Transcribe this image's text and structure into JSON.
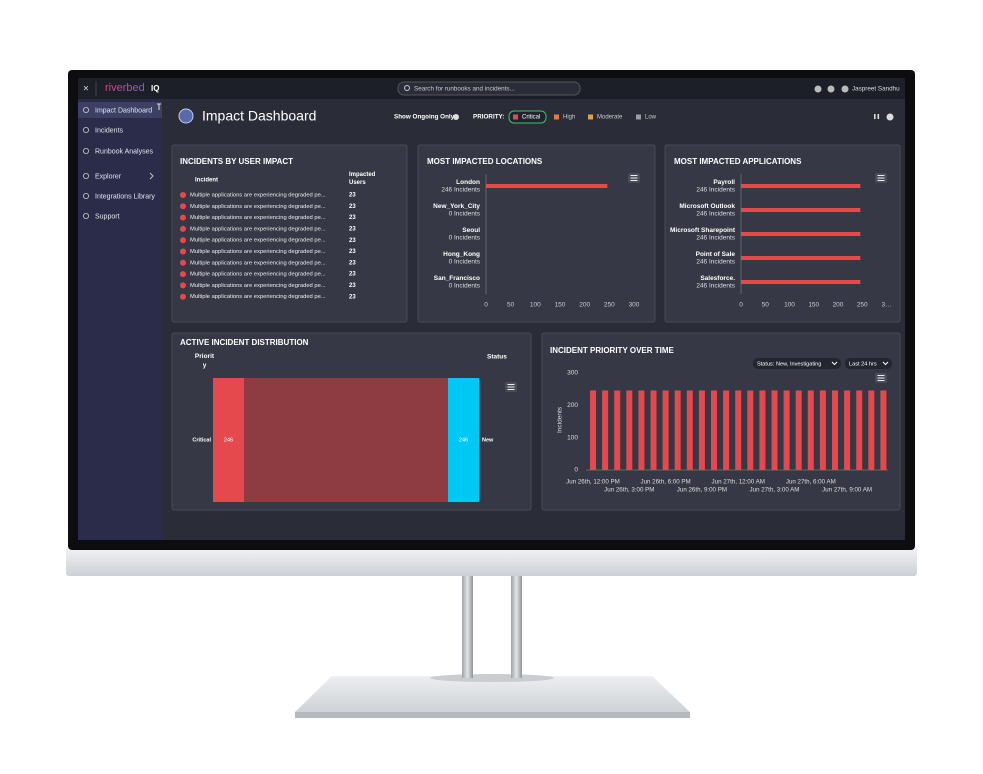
{
  "app": {
    "close": "×",
    "logo": "riverbed",
    "logo_suffix": "IQ",
    "search_placeholder": "Search for runbooks and incidents...",
    "user": "Jaspreet Sandhu"
  },
  "sidebar": {
    "items": [
      "Impact Dashboard",
      "Incidents",
      "Runbook Analyses",
      "Explorer",
      "Integrations Library",
      "Support"
    ]
  },
  "header": {
    "title": "Impact Dashboard",
    "toggle_label": "Show Ongoing Only",
    "priority_label": "PRIORITY:",
    "priorities": [
      {
        "name": "Critical",
        "color": "#e5484d"
      },
      {
        "name": "High",
        "color": "#e07b39"
      },
      {
        "name": "Moderate",
        "color": "#d9a441"
      },
      {
        "name": "Low",
        "color": "#9a9ca3"
      }
    ]
  },
  "incidents_table": {
    "title": "INCIDENTS BY USER IMPACT",
    "columns": [
      "Incident",
      "Impacted Users"
    ],
    "rows": [
      [
        "Multiple applications are experiencing degraded pe...",
        23
      ],
      [
        "Multiple applications are experiencing degraded pe...",
        23
      ],
      [
        "Multiple applications are experiencing degraded pe...",
        23
      ],
      [
        "Multiple applications are experiencing degraded pe...",
        23
      ],
      [
        "Multiple applications are experiencing degraded pe...",
        23
      ],
      [
        "Multiple applications are experiencing degraded pe...",
        23
      ],
      [
        "Multiple applications are experiencing degraded pe...",
        23
      ],
      [
        "Multiple applications are experiencing degraded pe...",
        23
      ],
      [
        "Multiple applications are experiencing degraded pe...",
        23
      ],
      [
        "Multiple applications are experiencing degraded pe...",
        23
      ]
    ]
  },
  "chart_data": [
    {
      "type": "hbar",
      "title": "MOST IMPACTED LOCATIONS",
      "categories": [
        "London",
        "New_York_City",
        "Seoul",
        "Hong_Kong",
        "San_Francisco"
      ],
      "values": [
        246,
        0,
        0,
        0,
        0
      ],
      "value_labels": [
        "246 Incidents",
        "0 Incidents",
        "0 Incidents",
        "0 Incidents",
        "0 Incidents"
      ],
      "color": "#e5484d",
      "xlim": [
        0,
        300
      ],
      "xticks": [
        0,
        50,
        100,
        150,
        200,
        250,
        300
      ]
    },
    {
      "type": "hbar",
      "title": "MOST IMPACTED APPLICATIONS",
      "categories": [
        "Payroll",
        "Microsoft Outlook",
        "Microsoft Sharepoint",
        "Point of Sale",
        "Salesforce."
      ],
      "values": [
        246,
        246,
        246,
        246,
        246
      ],
      "value_labels": [
        "246 Incidents",
        "246 Incidents",
        "246 Incidents",
        "246 Incidents",
        "246 Incidents"
      ],
      "color": "#e5484d",
      "xlim": [
        0,
        300
      ],
      "xticks": [
        0,
        50,
        100,
        150,
        200,
        250,
        {
          "value": 300,
          "label": "3…"
        }
      ]
    },
    {
      "type": "sankey",
      "title": "ACTIVE INCIDENT DISTRIBUTION",
      "source_header": "Priority",
      "target_header": "Status",
      "nodes": [
        {
          "name": "Critical",
          "value": 246,
          "color": "#e5484d",
          "column": 0
        },
        {
          "name": "New",
          "value": 246,
          "color": "#00c8f5",
          "column": 1
        }
      ],
      "links": [
        {
          "source": 0,
          "target": 1,
          "value": 246,
          "color": "#8e3b42"
        }
      ]
    },
    {
      "type": "bar",
      "title": "INCIDENT PRIORITY OVER TIME",
      "filters": [
        "Status: New, Investigating",
        "Last 24 hrs"
      ],
      "y_label": "Incidents",
      "categories": [
        "Jun 26th, 12:00 PM",
        null,
        null,
        "Jun 26th, 3:00 PM",
        null,
        null,
        "Jun 26th, 6:00 PM",
        null,
        null,
        "Jun 26th, 9:00 PM",
        null,
        null,
        "Jun 27th, 12:00 AM",
        null,
        null,
        "Jun 27th, 3:00 AM",
        null,
        null,
        "Jun 27th, 6:00 AM",
        null,
        null,
        "Jun 27th, 9:00 AM",
        null,
        null,
        null
      ],
      "values": [
        246,
        246,
        246,
        246,
        246,
        246,
        246,
        246,
        246,
        246,
        246,
        246,
        246,
        246,
        246,
        246,
        246,
        246,
        246,
        246,
        246,
        246,
        246,
        246,
        246
      ],
      "color": "#e5484d",
      "ylim": [
        0,
        300
      ],
      "yticks": [
        0,
        100,
        200,
        300
      ]
    }
  ]
}
